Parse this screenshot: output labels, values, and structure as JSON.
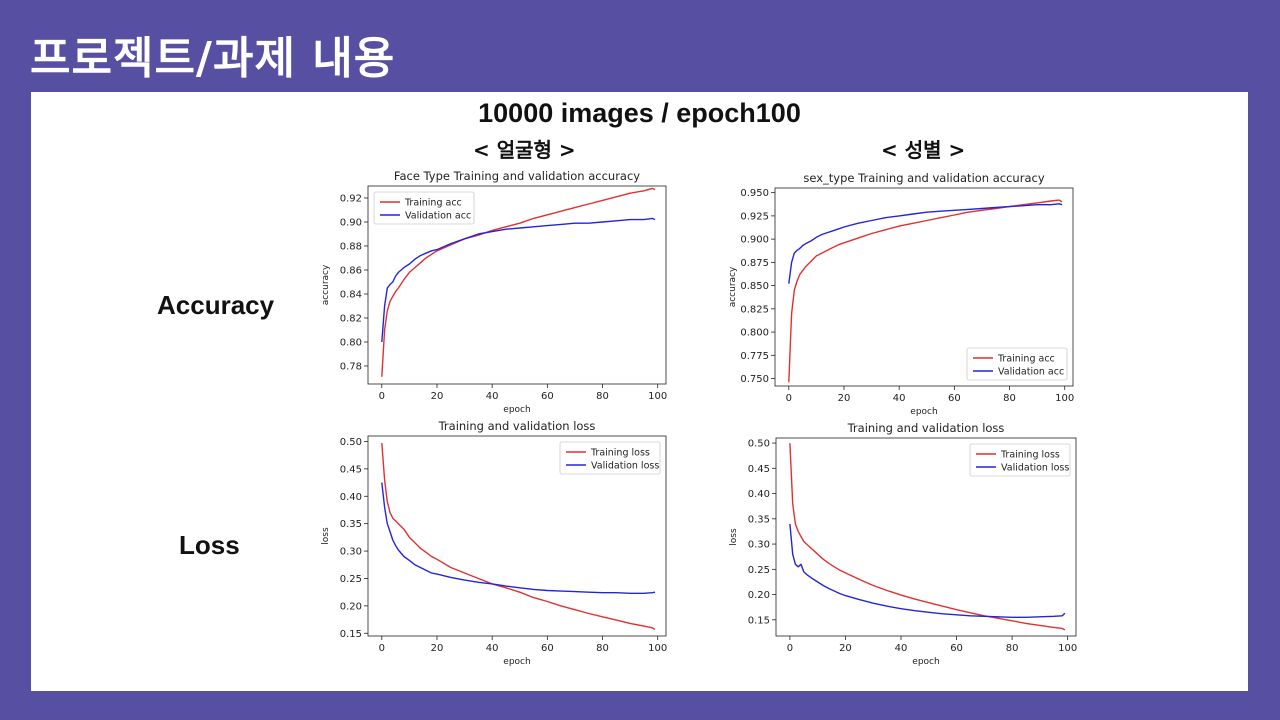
{
  "slide": {
    "title": "프로젝트/과제 내용",
    "heading": "10000 images / epoch100",
    "left_column": "< 얼굴형 >",
    "right_column": "< 성별 >",
    "row_accuracy": "Accuracy",
    "row_loss": "Loss"
  },
  "colors": {
    "background": "#574fa1",
    "training": "#e03131",
    "validation": "#2525d8"
  },
  "chart_data": [
    {
      "type": "line",
      "title": "Face Type Training and validation accuracy",
      "xlabel": "epoch",
      "ylabel": "accuracy",
      "xlim": [
        -5,
        103
      ],
      "ylim": [
        0.765,
        0.93
      ],
      "xticks": [
        0,
        20,
        40,
        60,
        80,
        100
      ],
      "yticks": [
        0.78,
        0.8,
        0.82,
        0.84,
        0.86,
        0.88,
        0.9,
        0.92
      ],
      "yfmt": 2,
      "legend": "upper-left",
      "x": [
        0,
        1,
        2,
        3,
        4,
        5,
        6,
        8,
        10,
        12,
        14,
        16,
        18,
        20,
        25,
        30,
        35,
        40,
        45,
        50,
        55,
        60,
        65,
        70,
        75,
        80,
        85,
        90,
        95,
        98,
        99
      ],
      "series": [
        {
          "name": "Training acc",
          "values": [
            0.771,
            0.81,
            0.826,
            0.834,
            0.838,
            0.842,
            0.845,
            0.852,
            0.858,
            0.862,
            0.866,
            0.87,
            0.873,
            0.876,
            0.881,
            0.886,
            0.889,
            0.893,
            0.896,
            0.899,
            0.903,
            0.906,
            0.909,
            0.912,
            0.915,
            0.918,
            0.921,
            0.924,
            0.926,
            0.928,
            0.927
          ]
        },
        {
          "name": "Validation acc",
          "values": [
            0.8,
            0.83,
            0.845,
            0.848,
            0.85,
            0.855,
            0.858,
            0.862,
            0.865,
            0.869,
            0.872,
            0.874,
            0.876,
            0.877,
            0.882,
            0.886,
            0.89,
            0.892,
            0.894,
            0.895,
            0.896,
            0.897,
            0.898,
            0.899,
            0.899,
            0.9,
            0.901,
            0.902,
            0.902,
            0.903,
            0.902
          ]
        }
      ]
    },
    {
      "type": "line",
      "title": "sex_type Training and validation accuracy",
      "xlabel": "epoch",
      "ylabel": "accuracy",
      "xlim": [
        -5,
        103
      ],
      "ylim": [
        0.742,
        0.955
      ],
      "xticks": [
        0,
        20,
        40,
        60,
        80,
        100
      ],
      "yticks": [
        0.75,
        0.775,
        0.8,
        0.825,
        0.85,
        0.875,
        0.9,
        0.925,
        0.95
      ],
      "yfmt": 3,
      "legend": "lower-right",
      "x": [
        0,
        1,
        2,
        3,
        4,
        5,
        6,
        8,
        10,
        12,
        14,
        16,
        18,
        20,
        25,
        30,
        35,
        40,
        45,
        50,
        55,
        60,
        65,
        70,
        75,
        80,
        85,
        90,
        95,
        98,
        99
      ],
      "series": [
        {
          "name": "Training acc",
          "values": [
            0.746,
            0.82,
            0.845,
            0.855,
            0.862,
            0.866,
            0.87,
            0.876,
            0.882,
            0.885,
            0.888,
            0.891,
            0.894,
            0.896,
            0.901,
            0.906,
            0.91,
            0.914,
            0.917,
            0.92,
            0.923,
            0.926,
            0.929,
            0.931,
            0.933,
            0.935,
            0.937,
            0.939,
            0.941,
            0.942,
            0.94
          ]
        },
        {
          "name": "Validation acc",
          "values": [
            0.852,
            0.875,
            0.885,
            0.888,
            0.89,
            0.893,
            0.895,
            0.898,
            0.902,
            0.905,
            0.907,
            0.909,
            0.911,
            0.913,
            0.917,
            0.92,
            0.923,
            0.925,
            0.927,
            0.929,
            0.93,
            0.931,
            0.932,
            0.933,
            0.934,
            0.935,
            0.936,
            0.937,
            0.937,
            0.938,
            0.937
          ]
        }
      ]
    },
    {
      "type": "line",
      "title": "Training and validation loss",
      "xlabel": "epoch",
      "ylabel": "loss",
      "xlim": [
        -5,
        103
      ],
      "ylim": [
        0.145,
        0.51
      ],
      "xticks": [
        0,
        20,
        40,
        60,
        80,
        100
      ],
      "yticks": [
        0.15,
        0.2,
        0.25,
        0.3,
        0.35,
        0.4,
        0.45,
        0.5
      ],
      "yfmt": 2,
      "legend": "upper-right",
      "x": [
        0,
        1,
        2,
        3,
        4,
        5,
        6,
        8,
        10,
        12,
        14,
        16,
        18,
        20,
        25,
        30,
        35,
        40,
        45,
        50,
        55,
        60,
        65,
        70,
        75,
        80,
        85,
        90,
        95,
        98,
        99
      ],
      "series": [
        {
          "name": "Training loss",
          "values": [
            0.497,
            0.43,
            0.39,
            0.37,
            0.36,
            0.355,
            0.35,
            0.34,
            0.325,
            0.315,
            0.305,
            0.298,
            0.29,
            0.285,
            0.27,
            0.26,
            0.25,
            0.24,
            0.233,
            0.225,
            0.215,
            0.208,
            0.2,
            0.193,
            0.186,
            0.18,
            0.174,
            0.168,
            0.163,
            0.16,
            0.157
          ]
        },
        {
          "name": "Validation loss",
          "values": [
            0.425,
            0.38,
            0.35,
            0.335,
            0.32,
            0.31,
            0.302,
            0.29,
            0.283,
            0.275,
            0.27,
            0.265,
            0.26,
            0.258,
            0.252,
            0.247,
            0.243,
            0.24,
            0.236,
            0.233,
            0.23,
            0.228,
            0.227,
            0.226,
            0.225,
            0.224,
            0.224,
            0.223,
            0.223,
            0.224,
            0.225
          ]
        }
      ]
    },
    {
      "type": "line",
      "title": "Training and validation loss",
      "xlabel": "epoch",
      "ylabel": "loss",
      "xlim": [
        -5,
        103
      ],
      "ylim": [
        0.118,
        0.51
      ],
      "xticks": [
        0,
        20,
        40,
        60,
        80,
        100
      ],
      "yticks": [
        0.15,
        0.2,
        0.25,
        0.3,
        0.35,
        0.4,
        0.45,
        0.5
      ],
      "yfmt": 2,
      "legend": "upper-right",
      "x": [
        0,
        1,
        2,
        3,
        4,
        5,
        6,
        8,
        10,
        12,
        14,
        16,
        18,
        20,
        25,
        30,
        35,
        40,
        45,
        50,
        55,
        60,
        65,
        70,
        75,
        80,
        85,
        90,
        95,
        98,
        99
      ],
      "series": [
        {
          "name": "Training loss",
          "values": [
            0.5,
            0.38,
            0.34,
            0.325,
            0.315,
            0.305,
            0.3,
            0.29,
            0.28,
            0.27,
            0.262,
            0.255,
            0.248,
            0.243,
            0.23,
            0.218,
            0.208,
            0.199,
            0.191,
            0.184,
            0.177,
            0.17,
            0.164,
            0.158,
            0.153,
            0.148,
            0.143,
            0.139,
            0.135,
            0.133,
            0.13
          ]
        },
        {
          "name": "Validation loss",
          "values": [
            0.34,
            0.28,
            0.26,
            0.255,
            0.26,
            0.245,
            0.24,
            0.232,
            0.225,
            0.218,
            0.212,
            0.207,
            0.202,
            0.198,
            0.19,
            0.183,
            0.177,
            0.172,
            0.168,
            0.165,
            0.162,
            0.16,
            0.158,
            0.157,
            0.156,
            0.155,
            0.155,
            0.156,
            0.157,
            0.158,
            0.163
          ]
        }
      ]
    }
  ]
}
